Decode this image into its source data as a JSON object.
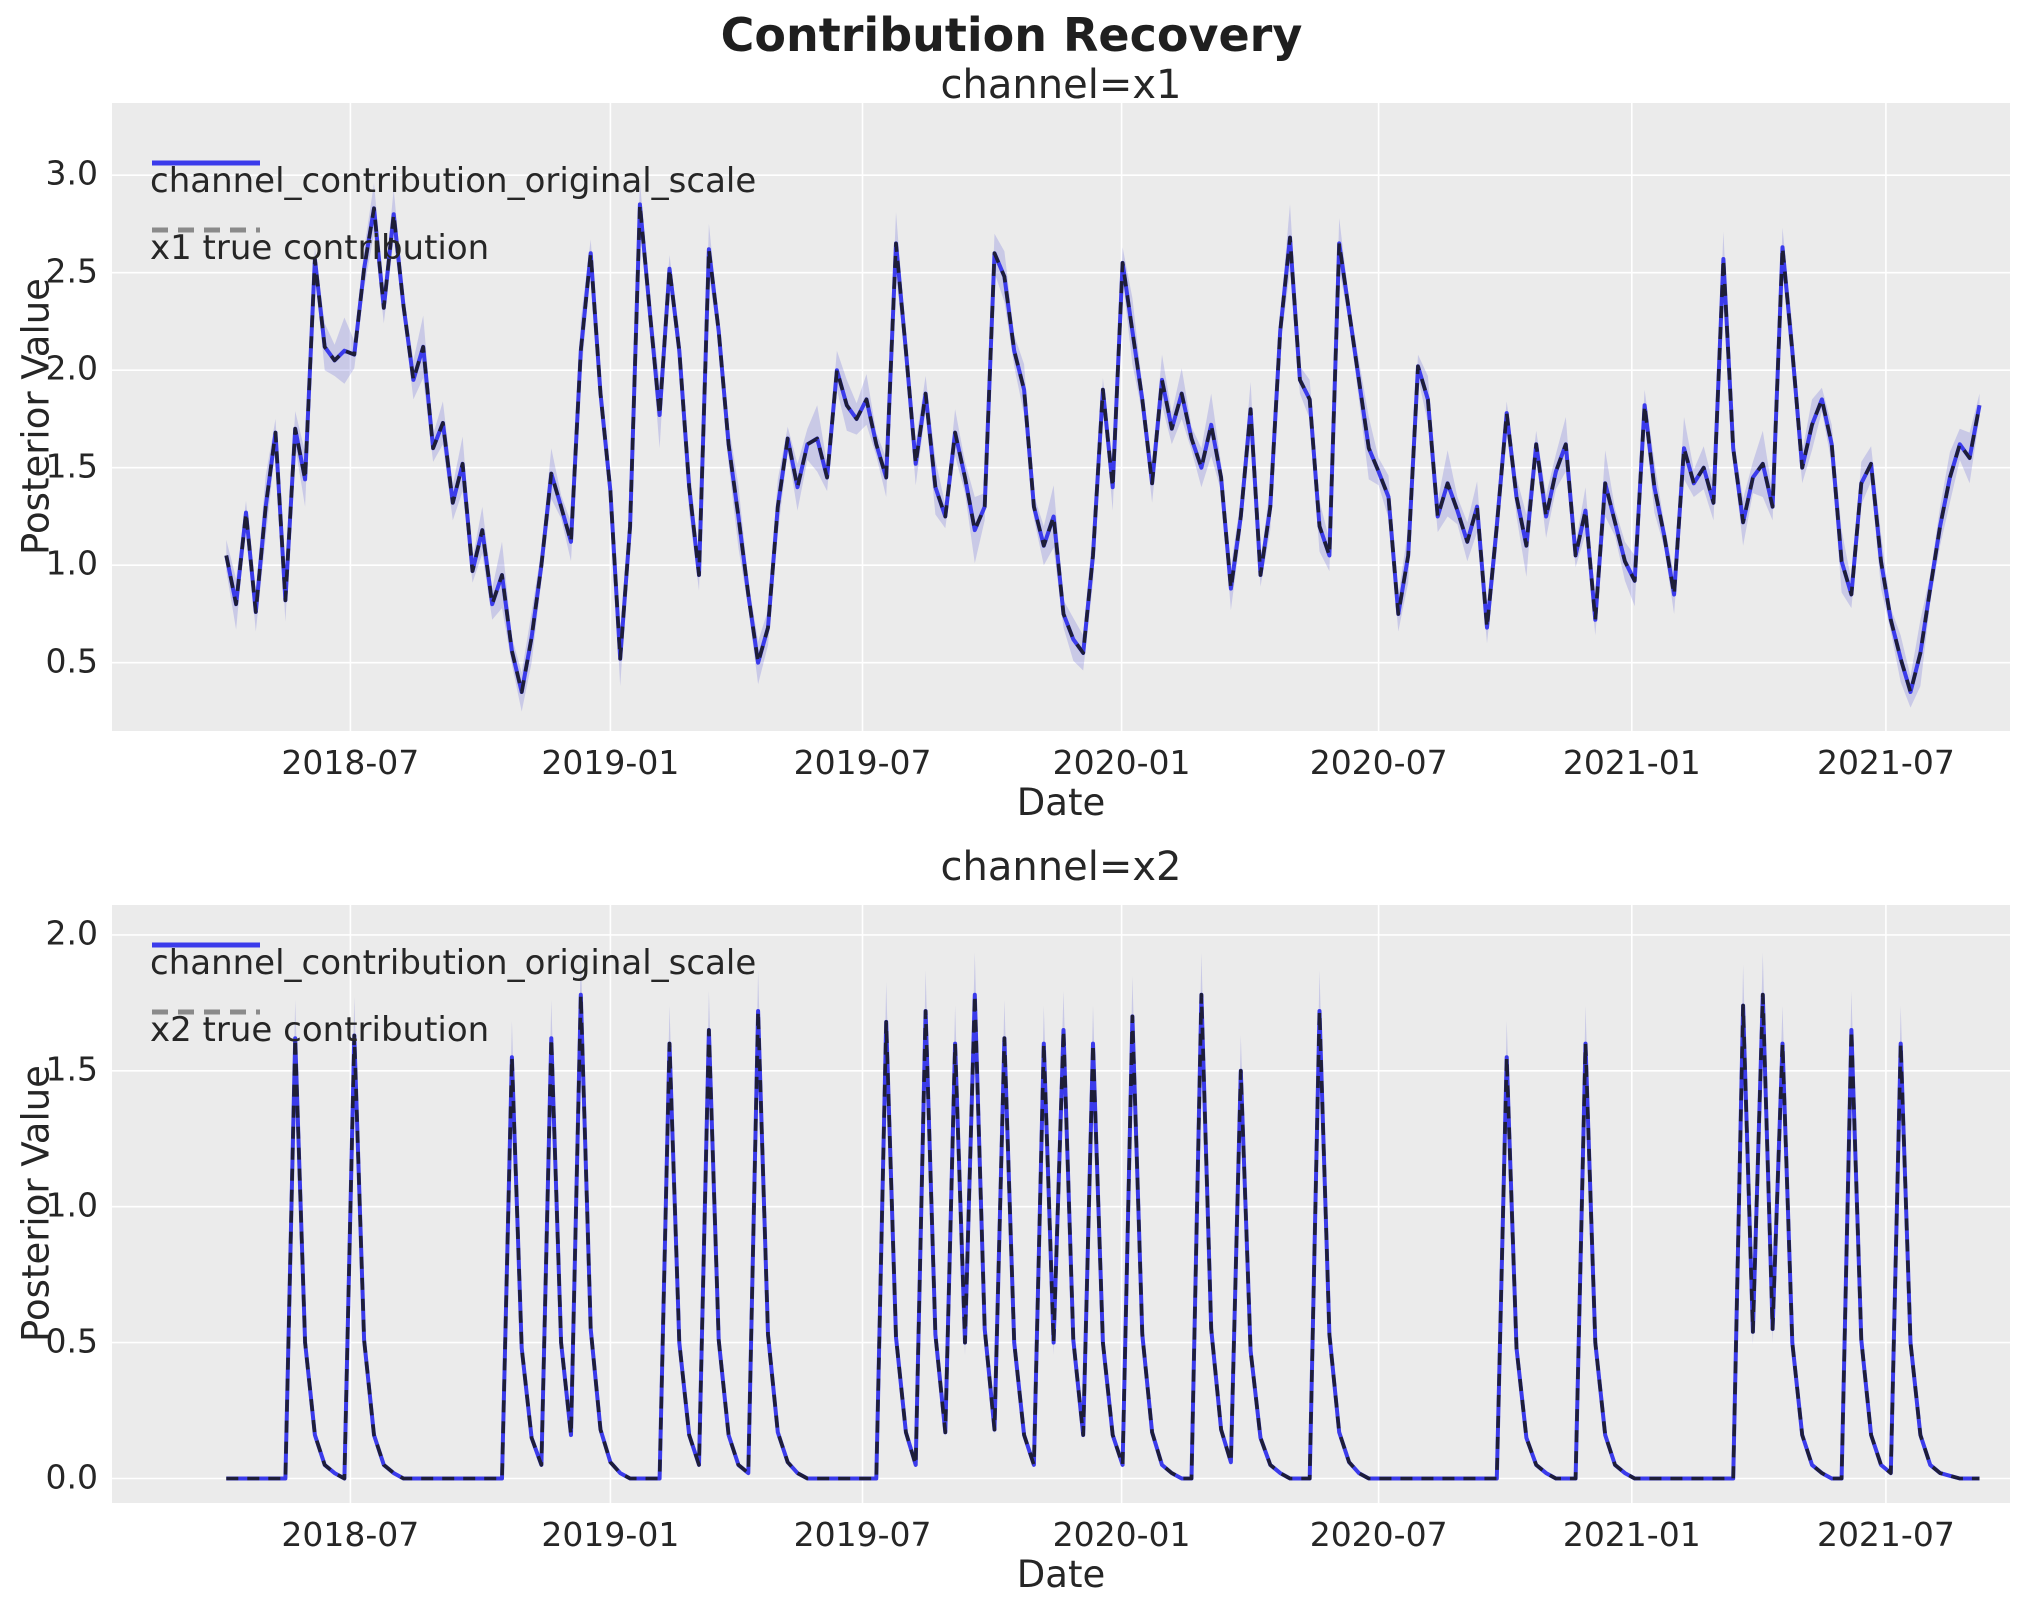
{
  "figure": {
    "suptitle": "Contribution Recovery"
  },
  "colors": {
    "plot_background": "#ebebeb",
    "grid": "#ffffff",
    "posterior_line": "#3b3beb",
    "true_line_on_plot": "#1e1e38",
    "true_line_legend": "#8a8a8a",
    "hdi_band": "rgba(84,84,212,0.22)",
    "text": "#262626"
  },
  "chart_data": [
    {
      "type": "line",
      "title": "channel=x1",
      "xlabel": "Date",
      "ylabel": "Posterior Value",
      "grid": true,
      "legend_position": "upper left",
      "ylim": [
        0.15,
        3.37
      ],
      "xlim_index": [
        -11.6,
        181.1
      ],
      "x_ticks": {
        "positions": [
          12.6,
          39.0,
          64.6,
          90.9,
          117.0,
          142.7,
          168.5
        ],
        "labels": [
          "2018-07",
          "2019-01",
          "2019-07",
          "2020-01",
          "2020-07",
          "2021-01",
          "2021-07"
        ]
      },
      "y_ticks": {
        "values": [
          3.0,
          2.5,
          2.0,
          1.5,
          1.0,
          0.5
        ],
        "labels": [
          "3.0",
          "2.5",
          "2.0",
          "1.5",
          "1.0",
          "0.5"
        ]
      },
      "x_frequency": "weekly",
      "hdi_halfwidth_cycle": [
        0.08,
        0.13,
        0.06,
        0.1,
        0.16,
        0.07,
        0.11,
        0.09,
        0.14,
        0.06,
        0.12,
        0.08,
        0.17,
        0.07,
        0.1,
        0.13
      ],
      "series": [
        {
          "name": "channel_contribution_original_scale",
          "style": "solid",
          "values": [
            1.05,
            0.8,
            1.27,
            0.76,
            1.3,
            1.68,
            0.82,
            1.7,
            1.44,
            2.57,
            2.12,
            2.05,
            2.1,
            2.08,
            2.52,
            2.83,
            2.32,
            2.8,
            2.33,
            1.95,
            2.12,
            1.6,
            1.73,
            1.32,
            1.52,
            0.97,
            1.18,
            0.8,
            0.95,
            0.56,
            0.35,
            0.63,
            1.0,
            1.47,
            1.3,
            1.12,
            2.1,
            2.6,
            1.88,
            1.38,
            0.52,
            1.2,
            2.85,
            2.3,
            1.77,
            2.52,
            2.1,
            1.4,
            0.95,
            2.62,
            2.2,
            1.62,
            1.25,
            0.85,
            0.5,
            0.68,
            1.3,
            1.65,
            1.4,
            1.62,
            1.65,
            1.45,
            2.0,
            1.82,
            1.75,
            1.85,
            1.62,
            1.45,
            2.65,
            2.1,
            1.52,
            1.88,
            1.4,
            1.25,
            1.68,
            1.45,
            1.18,
            1.3,
            2.6,
            2.48,
            2.1,
            1.9,
            1.3,
            1.1,
            1.25,
            0.75,
            0.62,
            0.55,
            1.05,
            1.9,
            1.4,
            2.55,
            2.2,
            1.85,
            1.42,
            1.95,
            1.7,
            1.88,
            1.65,
            1.5,
            1.72,
            1.45,
            0.88,
            1.25,
            1.8,
            0.95,
            1.3,
            2.2,
            2.68,
            1.95,
            1.85,
            1.2,
            1.05,
            2.65,
            2.3,
            1.95,
            1.6,
            1.48,
            1.35,
            0.75,
            1.05,
            2.02,
            1.85,
            1.25,
            1.42,
            1.28,
            1.12,
            1.3,
            0.68,
            1.2,
            1.78,
            1.35,
            1.1,
            1.62,
            1.25,
            1.48,
            1.62,
            1.05,
            1.28,
            0.72,
            1.42,
            1.22,
            1.02,
            0.92,
            1.82,
            1.4,
            1.15,
            0.85,
            1.6,
            1.42,
            1.5,
            1.32,
            2.57,
            1.6,
            1.22,
            1.45,
            1.52,
            1.3,
            2.63,
            2.1,
            1.5,
            1.72,
            1.85,
            1.62,
            1.02,
            0.85,
            1.42,
            1.52,
            1.02,
            0.72,
            0.52,
            0.35,
            0.55,
            0.88,
            1.2,
            1.45,
            1.62,
            1.55,
            1.82
          ]
        },
        {
          "name": "x1 true contribution",
          "style": "dashed",
          "values": "same_as_series_0"
        }
      ]
    },
    {
      "type": "line",
      "title": "channel=x2",
      "xlabel": "Date",
      "ylabel": "Posterior Value",
      "grid": true,
      "legend_position": "upper left",
      "ylim": [
        -0.09,
        2.11
      ],
      "xlim_index": [
        -11.6,
        181.1
      ],
      "x_ticks": {
        "positions": [
          12.6,
          39.0,
          64.6,
          90.9,
          117.0,
          142.7,
          168.5
        ],
        "labels": [
          "2018-07",
          "2019-01",
          "2019-07",
          "2020-01",
          "2020-07",
          "2021-01",
          "2021-07"
        ]
      },
      "y_ticks": {
        "values": [
          2.0,
          1.5,
          1.0,
          0.5,
          0.0
        ],
        "labels": [
          "2.0",
          "1.5",
          "1.0",
          "0.5",
          "0.0"
        ]
      },
      "x_frequency": "weekly",
      "hdi_rule": {
        "slope": 0.085,
        "base": 0.003
      },
      "series": [
        {
          "name": "channel_contribution_original_scale",
          "style": "solid",
          "values": [
            0,
            0,
            0,
            0,
            0,
            0,
            0,
            1.62,
            0.5,
            0.16,
            0.05,
            0.02,
            0,
            1.63,
            0.51,
            0.16,
            0.05,
            0.02,
            0,
            0,
            0,
            0,
            0,
            0,
            0,
            0,
            0,
            0,
            0,
            1.55,
            0.48,
            0.15,
            0.05,
            1.62,
            0.5,
            0.16,
            1.78,
            0.55,
            0.18,
            0.06,
            0.02,
            0,
            0,
            0,
            0,
            1.6,
            0.5,
            0.16,
            0.05,
            1.65,
            0.51,
            0.16,
            0.05,
            0.02,
            1.72,
            0.53,
            0.17,
            0.06,
            0.02,
            0,
            0,
            0,
            0,
            0,
            0,
            0,
            0,
            1.68,
            0.52,
            0.17,
            0.05,
            1.72,
            0.53,
            0.17,
            1.6,
            0.5,
            1.78,
            0.55,
            0.18,
            1.62,
            0.5,
            0.16,
            0.05,
            1.6,
            0.5,
            1.65,
            0.51,
            0.16,
            1.6,
            0.5,
            0.16,
            0.05,
            1.7,
            0.53,
            0.17,
            0.05,
            0.02,
            0,
            0,
            1.78,
            0.55,
            0.18,
            0.06,
            1.5,
            0.47,
            0.15,
            0.05,
            0.02,
            0,
            0,
            0,
            1.72,
            0.53,
            0.17,
            0.06,
            0.02,
            0,
            0,
            0,
            0,
            0,
            0,
            0,
            0,
            0,
            0,
            0,
            0,
            0,
            0,
            1.55,
            0.48,
            0.15,
            0.05,
            0.02,
            0,
            0,
            0,
            1.6,
            0.5,
            0.16,
            0.05,
            0.02,
            0,
            0,
            0,
            0,
            0,
            0,
            0,
            0,
            0,
            0,
            0,
            1.74,
            0.54,
            1.78,
            0.55,
            1.6,
            0.5,
            0.16,
            0.05,
            0.02,
            0,
            0,
            1.65,
            0.51,
            0.16,
            0.05,
            0.02,
            1.6,
            0.5,
            0.16,
            0.05,
            0.02,
            0.01,
            0,
            0,
            0
          ]
        },
        {
          "name": "x2 true contribution",
          "style": "dashed",
          "values": "same_as_series_0"
        }
      ]
    }
  ]
}
